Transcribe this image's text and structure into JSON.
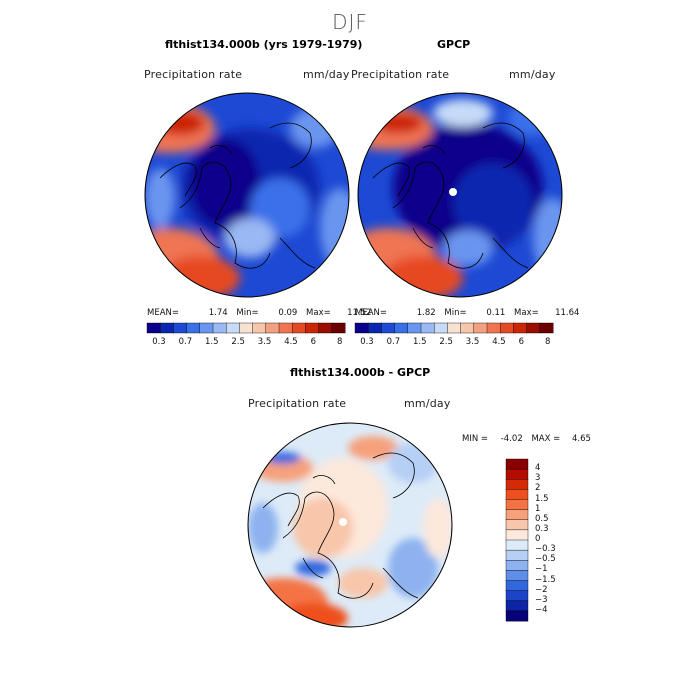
{
  "season": "DJF",
  "panels": [
    {
      "title": "flthist134.000b (yrs 1979-1979)",
      "field": "Precipitation rate",
      "units": "mm/day",
      "mean_label": "MEAN=",
      "mean": "1.74",
      "min_label": "Min=",
      "min": "0.09",
      "max_label": "Max=",
      "max": "11.52"
    },
    {
      "title": "GPCP",
      "field": "Precipitation rate",
      "units": "mm/day",
      "mean_label": "MEAN=",
      "mean": "1.82",
      "min_label": "Min=",
      "min": "0.11",
      "max_label": "Max=",
      "max": "11.64"
    }
  ],
  "abs_colorbar": {
    "colors": [
      "#08008a",
      "#0c25b0",
      "#1d49d4",
      "#3a6fea",
      "#6b95ef",
      "#9ab8f3",
      "#c6dbf8",
      "#f6e2d0",
      "#f7c7ac",
      "#f4a182",
      "#ef7552",
      "#e64a24",
      "#cc2406",
      "#9c0c00",
      "#6a0000"
    ],
    "tick_labels": [
      "0.3",
      "0.7",
      "1.5",
      "2.5",
      "3.5",
      "4.5",
      "6",
      "8"
    ]
  },
  "diff_panel": {
    "title": "flthist134.000b - GPCP",
    "field": "Precipitation rate",
    "units": "mm/day",
    "min_label": "MIN =",
    "min": "-4.02",
    "max_label": "MAX =",
    "max": "4.65"
  },
  "diff_colorbar": {
    "colors": [
      "#8a0000",
      "#b40c00",
      "#d62a07",
      "#ee4f1e",
      "#f47344",
      "#f6a07c",
      "#f8c6aa",
      "#fde8dc",
      "#ddebf8",
      "#b6cff5",
      "#8db2ef",
      "#5f8ee8",
      "#3367df",
      "#1c44c9",
      "#0c24a5",
      "#06007a"
    ],
    "labels": [
      "4",
      "3",
      "2",
      "1.5",
      "1",
      "0.5",
      "0.3",
      "0",
      "−0.3",
      "−0.5",
      "−1",
      "−1.5",
      "−2",
      "−3",
      "−4"
    ]
  }
}
